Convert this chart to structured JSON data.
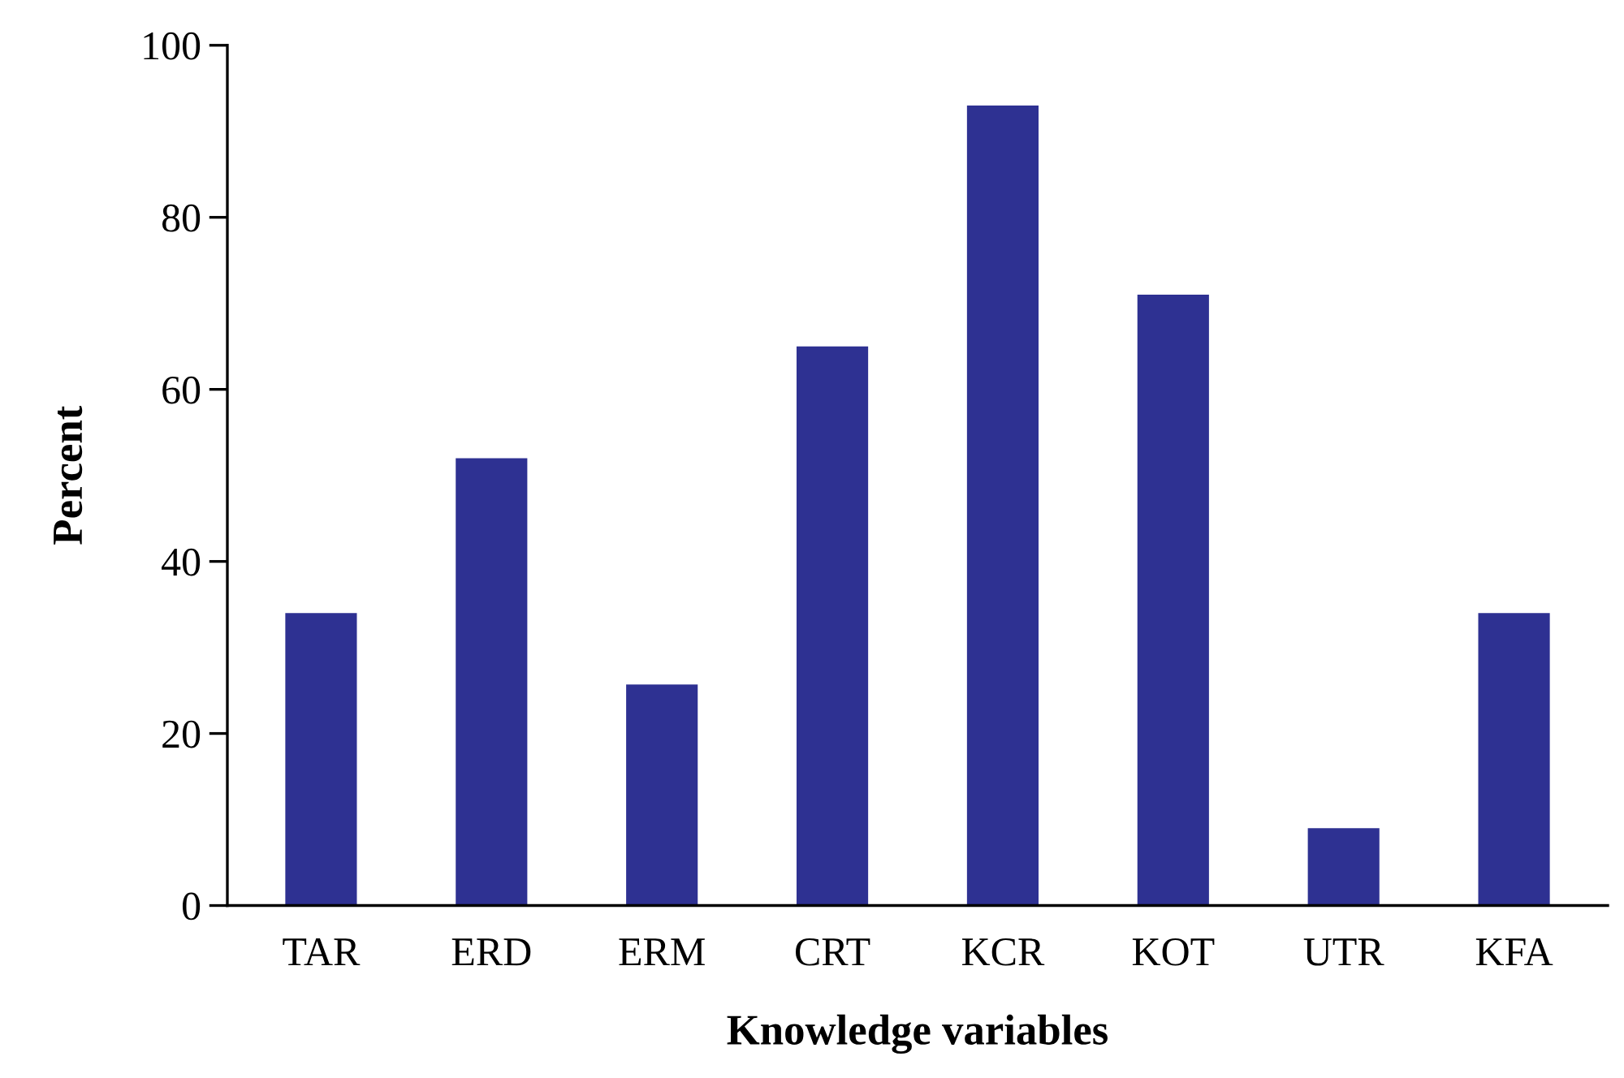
{
  "chart_data": {
    "type": "bar",
    "xlabel": "Knowledge variables",
    "ylabel": "Percent",
    "categories": [
      "TAR",
      "ERD",
      "ERM",
      "CRT",
      "KCR",
      "KOT",
      "UTR",
      "KFA"
    ],
    "values": [
      34,
      52,
      25.7,
      65,
      93,
      71,
      9,
      34
    ],
    "color": "#2e3192",
    "ylim": [
      0,
      100
    ],
    "yticks": [
      0,
      20,
      40,
      60,
      80,
      100
    ],
    "grid": false,
    "legend": false
  }
}
